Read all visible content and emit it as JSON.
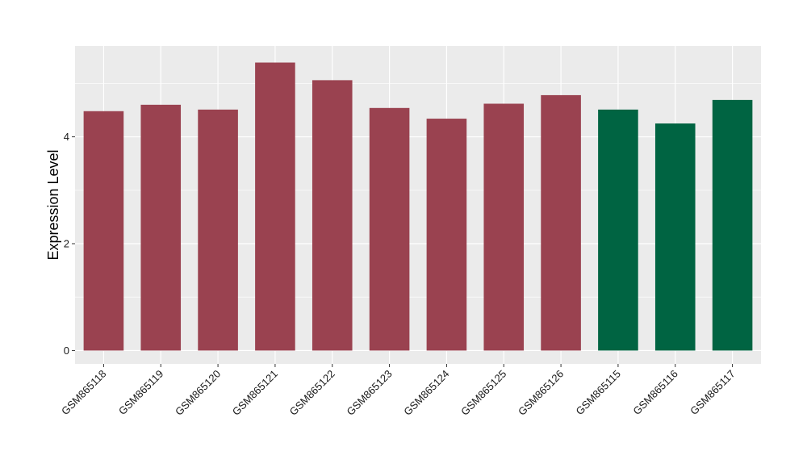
{
  "chart_data": {
    "type": "bar",
    "title": "",
    "xlabel": "",
    "ylabel": "Expression Level",
    "ylim": [
      -0.25,
      5.7
    ],
    "yticks": [
      0,
      2,
      4
    ],
    "grid": true,
    "legend": "none",
    "categories": [
      "GSM865118",
      "GSM865119",
      "GSM865120",
      "GSM865121",
      "GSM865122",
      "GSM865123",
      "GSM865124",
      "GSM865125",
      "GSM865126",
      "GSM865115",
      "GSM865116",
      "GSM865117"
    ],
    "values": [
      4.48,
      4.6,
      4.51,
      5.39,
      5.06,
      4.54,
      4.34,
      4.62,
      4.78,
      4.51,
      4.25,
      4.69
    ],
    "bar_colors": [
      "#9a4250",
      "#9a4250",
      "#9a4250",
      "#9a4250",
      "#9a4250",
      "#9a4250",
      "#9a4250",
      "#9a4250",
      "#9a4250",
      "#006442",
      "#006442",
      "#006442"
    ],
    "panel_color": "#ebebeb",
    "grid_color": "#ffffff"
  }
}
